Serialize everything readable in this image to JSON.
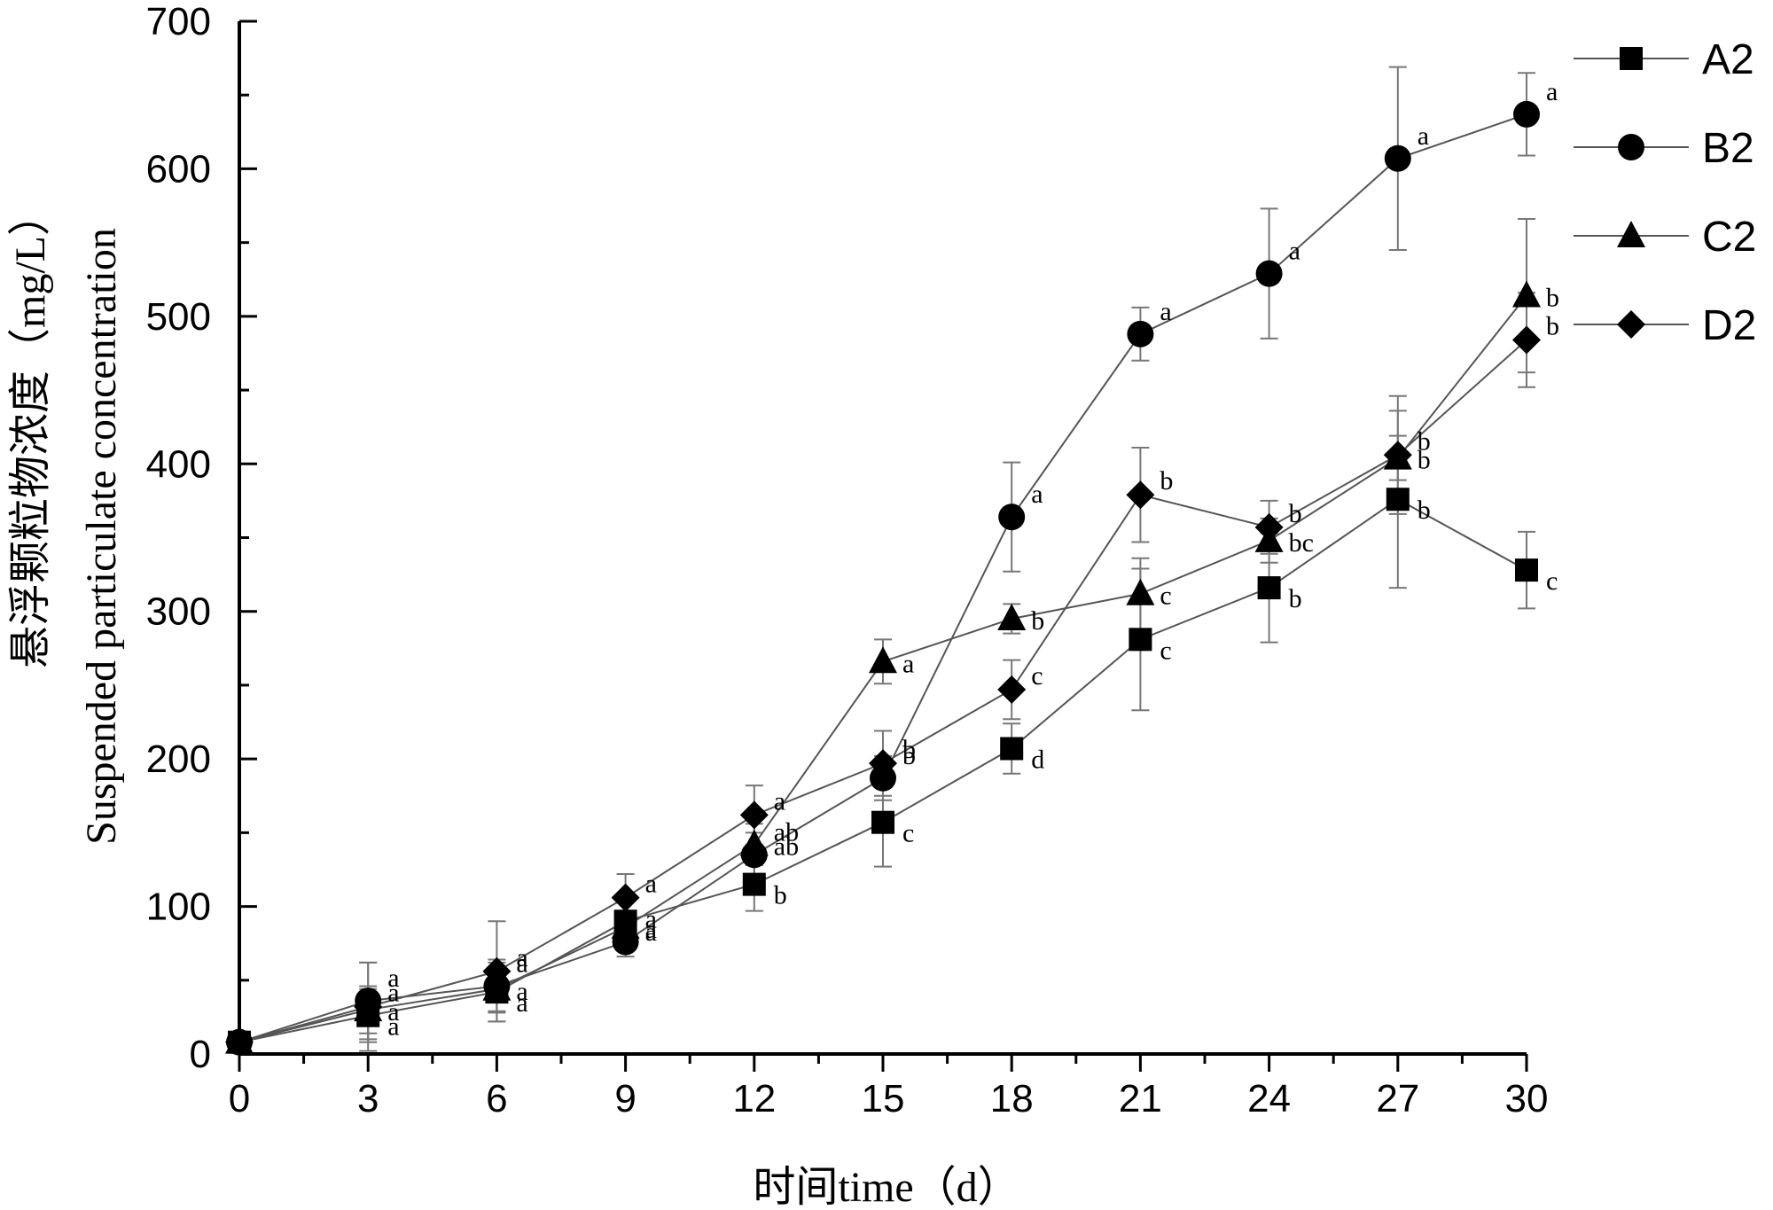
{
  "chart_data": {
    "type": "line",
    "title": "",
    "xlabel": "时间time（d）",
    "ylabel": "悬浮颗粒物浓度（mg/L）",
    "ylabel_en": "Suspended particulate concentration",
    "xlim": [
      0,
      30
    ],
    "ylim": [
      0,
      700
    ],
    "xticks": [
      "0",
      "3",
      "6",
      "9",
      "12",
      "15",
      "18",
      "21",
      "24",
      "27",
      "30"
    ],
    "yticks": [
      "0",
      "100",
      "200",
      "300",
      "400",
      "500",
      "600",
      "700"
    ],
    "legend_position": "top-right",
    "grid": false,
    "x": [
      0,
      3,
      6,
      9,
      12,
      15,
      18,
      21,
      24,
      27,
      30
    ],
    "series": [
      {
        "name": "A2",
        "marker": "square",
        "values": [
          8,
          26,
          42,
          90,
          115,
          157,
          207,
          281,
          316,
          376,
          328
        ],
        "errors": [
          3,
          18,
          20,
          15,
          18,
          30,
          17,
          48,
          37,
          60,
          26
        ],
        "labels": [
          "",
          "a",
          "a",
          "a",
          "b",
          "c",
          "d",
          "c",
          "b",
          "b",
          "c"
        ]
      },
      {
        "name": "B2",
        "marker": "circle",
        "values": [
          8,
          36,
          46,
          76,
          135,
          187,
          364,
          488,
          529,
          607,
          637
        ],
        "errors": [
          3,
          26,
          18,
          10,
          15,
          15,
          37,
          18,
          44,
          62,
          28
        ],
        "labels": [
          "",
          "a",
          "a",
          "a",
          "ab",
          "b",
          "a",
          "a",
          "a",
          "a",
          "a"
        ]
      },
      {
        "name": "C2",
        "marker": "triangle",
        "values": [
          8,
          30,
          44,
          86,
          142,
          266,
          295,
          312,
          348,
          404,
          514
        ],
        "errors": [
          3,
          16,
          15,
          10,
          14,
          15,
          10,
          24,
          15,
          15,
          52
        ],
        "labels": [
          "",
          "a",
          "a",
          "a",
          "ab",
          "a",
          "b",
          "c",
          "bc",
          "b",
          "b"
        ]
      },
      {
        "name": "D2",
        "marker": "diamond",
        "values": [
          8,
          32,
          56,
          106,
          162,
          197,
          247,
          379,
          357,
          406,
          484
        ],
        "errors": [
          3,
          30,
          34,
          16,
          20,
          22,
          20,
          32,
          18,
          40,
          32
        ],
        "labels": [
          "",
          "a",
          "a",
          "a",
          "a",
          "b",
          "c",
          "b",
          "b",
          "b",
          "b"
        ]
      }
    ]
  }
}
